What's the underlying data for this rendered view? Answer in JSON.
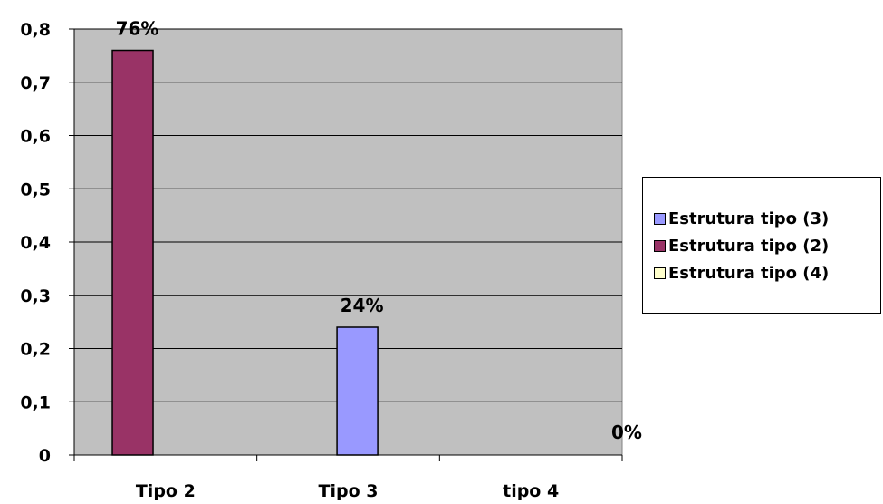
{
  "chart_data": {
    "type": "bar",
    "categories": [
      "Tipo 2",
      "Tipo 3",
      "tipo 4"
    ],
    "series": [
      {
        "name": "Estrutura tipo (3)",
        "color": "#9999FF",
        "values": [
          0,
          0.24,
          0
        ]
      },
      {
        "name": "Estrutura tipo (2)",
        "color": "#993366",
        "values": [
          0.76,
          0,
          0
        ]
      },
      {
        "name": "Estrutura tipo (4)",
        "color": "#FFFFCC",
        "values": [
          0,
          0,
          0
        ]
      }
    ],
    "bars": [
      {
        "category": "Tipo 2",
        "series": "Estrutura tipo (2)",
        "value": 0.76,
        "label": "76%"
      },
      {
        "category": "Tipo 3",
        "series": "Estrutura tipo (3)",
        "value": 0.24,
        "label": "24%"
      },
      {
        "category": "tipo 4",
        "series": "Estrutura tipo (4)",
        "value": 0,
        "label": "0%"
      }
    ],
    "yticks": [
      "0",
      "0,1",
      "0,2",
      "0,3",
      "0,4",
      "0,5",
      "0,6",
      "0,7",
      "0,8"
    ],
    "ylim": [
      0,
      0.8
    ],
    "grid": true,
    "plot_background": "#C0C0C0",
    "legend_position": "right"
  }
}
